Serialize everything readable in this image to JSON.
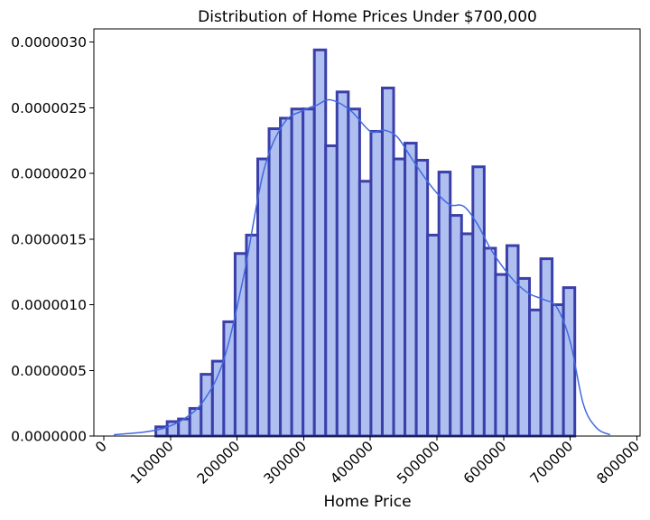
{
  "chart_data": {
    "type": "histogram",
    "title": "Distribution of Home Prices Under $700,000",
    "xlabel": "Home Price",
    "ylabel": "",
    "xlim": [
      -15000,
      805000
    ],
    "ylim": [
      0,
      3.1e-06
    ],
    "x_ticks": [
      0,
      100000,
      200000,
      300000,
      400000,
      500000,
      600000,
      700000,
      800000
    ],
    "x_tick_labels": [
      "0",
      "100000",
      "200000",
      "300000",
      "400000",
      "500000",
      "600000",
      "700000",
      "800000"
    ],
    "y_ticks": [
      0,
      5e-07,
      1e-06,
      1.5e-06,
      2e-06,
      2.5e-06,
      3e-06
    ],
    "y_tick_labels": [
      "0.0000000",
      "0.0000005",
      "0.0000010",
      "0.0000015",
      "0.0000020",
      "0.0000025",
      "0.0000030"
    ],
    "bins": {
      "edges_start": 78000,
      "bin_width": 17000,
      "densities": [
        7e-08,
        1.1e-07,
        1.3e-07,
        2.1e-07,
        4.7e-07,
        5.7e-07,
        8.7e-07,
        1.39e-06,
        1.53e-06,
        2.11e-06,
        2.34e-06,
        2.42e-06,
        2.49e-06,
        2.49e-06,
        2.94e-06,
        2.21e-06,
        2.62e-06,
        2.49e-06,
        1.94e-06,
        2.32e-06,
        2.65e-06,
        2.11e-06,
        2.23e-06,
        2.1e-06,
        1.53e-06,
        2.01e-06,
        1.68e-06,
        1.54e-06,
        2.05e-06,
        1.43e-06,
        1.23e-06,
        1.45e-06,
        1.2e-06,
        9.6e-07,
        1.35e-06,
        1e-06,
        1.13e-06
      ]
    },
    "kde": {
      "x": [
        15000,
        60000,
        90000,
        120000,
        150000,
        180000,
        210000,
        240000,
        270000,
        300000,
        320000,
        340000,
        370000,
        400000,
        420000,
        440000,
        460000,
        480000,
        500000,
        520000,
        540000,
        560000,
        580000,
        600000,
        620000,
        640000,
        660000,
        680000,
        700000,
        720000,
        740000,
        760000
      ],
      "y": [
        1e-08,
        3e-08,
        6e-08,
        1.3e-07,
        2.7e-07,
        5.8e-07,
        1.22e-06,
        2.02e-06,
        2.38e-06,
        2.48e-06,
        2.52e-06,
        2.56e-06,
        2.48e-06,
        2.32e-06,
        2.33e-06,
        2.28e-06,
        2.13e-06,
        1.98e-06,
        1.85e-06,
        1.76e-06,
        1.75e-06,
        1.62e-06,
        1.43e-06,
        1.28e-06,
        1.16e-06,
        1.08e-06,
        1.04e-06,
        9.8e-07,
        7.2e-07,
        2.4e-07,
        6e-08,
        1e-08
      ]
    },
    "colors": {
      "bar_fill": "#aebff0",
      "bar_edge": "#3a3faa",
      "kde_line": "#4169e1"
    },
    "grid": false,
    "legend": "none"
  }
}
